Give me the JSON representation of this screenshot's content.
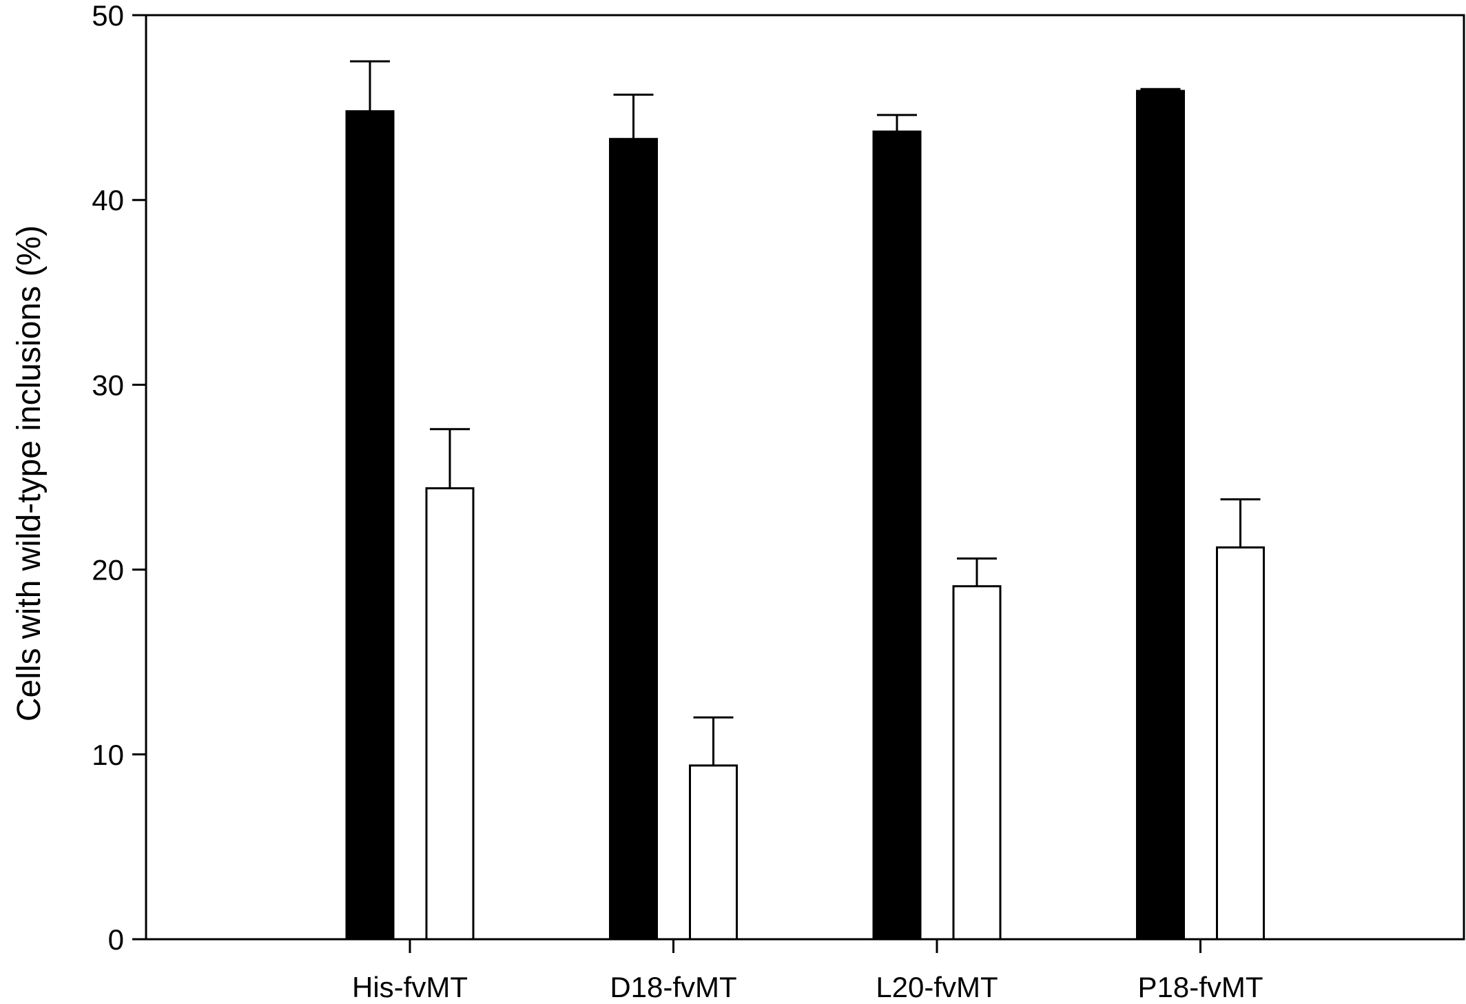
{
  "chart_data": {
    "type": "bar",
    "title": "",
    "xlabel": "",
    "ylabel": "Cells with wild-type inclusions (%)",
    "ylim": [
      0,
      50
    ],
    "yticks": [
      0,
      10,
      20,
      30,
      40,
      50
    ],
    "grid": false,
    "legend": "none",
    "categories": [
      "His-fvMT",
      "D18-fvMT",
      "L20-fvMT",
      "P18-fvMT"
    ],
    "series": [
      {
        "fill": "#000000",
        "values": [
          44.8,
          43.3,
          43.7,
          45.9
        ],
        "errors": [
          2.7,
          2.4,
          0.9,
          0.1
        ]
      },
      {
        "fill": "#ffffff",
        "values": [
          24.4,
          9.4,
          19.1,
          21.2
        ],
        "errors": [
          3.2,
          2.6,
          1.5,
          2.6
        ]
      }
    ]
  }
}
